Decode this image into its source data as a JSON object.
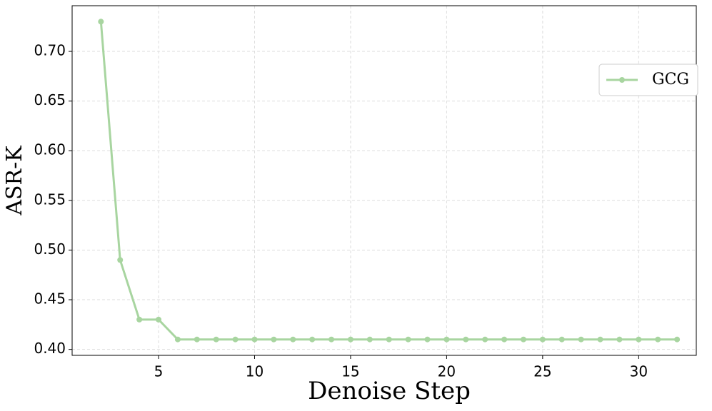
{
  "chart_data": {
    "type": "line",
    "x_label": "Denoise Step",
    "y_label": "ASR-K",
    "x": [
      2,
      3,
      4,
      5,
      6,
      7,
      8,
      9,
      10,
      11,
      12,
      13,
      14,
      15,
      16,
      17,
      18,
      19,
      20,
      21,
      22,
      23,
      24,
      25,
      26,
      27,
      28,
      29,
      30,
      31,
      32
    ],
    "series": [
      {
        "name": "GCG",
        "color": "#a8d5a0",
        "values": [
          0.73,
          0.49,
          0.43,
          0.43,
          0.41,
          0.41,
          0.41,
          0.41,
          0.41,
          0.41,
          0.41,
          0.41,
          0.41,
          0.41,
          0.41,
          0.41,
          0.41,
          0.41,
          0.41,
          0.41,
          0.41,
          0.41,
          0.41,
          0.41,
          0.41,
          0.41,
          0.41,
          0.41,
          0.41,
          0.41,
          0.41
        ]
      }
    ],
    "xlim": [
      0.5,
      33
    ],
    "ylim": [
      0.394,
      0.746
    ],
    "xticks": [
      5,
      10,
      15,
      20,
      25,
      30
    ],
    "yticks": [
      {
        "value": 0.4,
        "label": "0.40"
      },
      {
        "value": 0.45,
        "label": "0.45"
      },
      {
        "value": 0.5,
        "label": "0.50"
      },
      {
        "value": 0.55,
        "label": "0.55"
      },
      {
        "value": 0.6,
        "label": "0.60"
      },
      {
        "value": 0.65,
        "label": "0.65"
      },
      {
        "value": 0.7,
        "label": "0.70"
      }
    ],
    "grid": true,
    "legend": "upper right"
  }
}
